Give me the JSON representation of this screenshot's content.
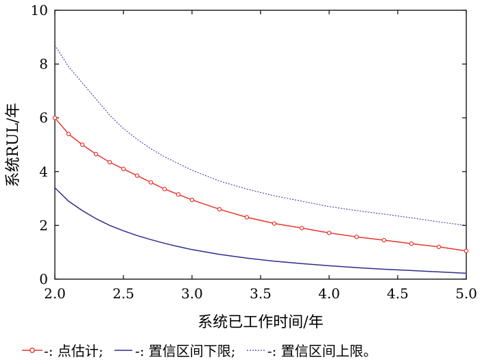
{
  "chart_data": {
    "type": "line",
    "xlabel": "系统已工作时间/年",
    "ylabel": "系统RUL/年",
    "xlim": [
      2.0,
      5.0
    ],
    "ylim": [
      0,
      10
    ],
    "xticks": [
      "2.0",
      "2.5",
      "3.0",
      "3.5",
      "4.0",
      "4.5",
      "5.0"
    ],
    "yticks": [
      "0",
      "2",
      "4",
      "6",
      "8",
      "10"
    ],
    "grid": false,
    "legend_position": "bottom",
    "series": [
      {
        "name": "点估计",
        "color": "#e8322a",
        "style": "line-circle",
        "x": [
          2.0,
          2.1,
          2.2,
          2.3,
          2.4,
          2.5,
          2.6,
          2.7,
          2.8,
          2.9,
          3.0,
          3.2,
          3.4,
          3.6,
          3.8,
          4.0,
          4.2,
          4.4,
          4.6,
          4.8,
          5.0
        ],
        "y": [
          6.0,
          5.4,
          5.0,
          4.65,
          4.35,
          4.1,
          3.85,
          3.6,
          3.35,
          3.15,
          2.95,
          2.6,
          2.3,
          2.07,
          1.9,
          1.72,
          1.57,
          1.45,
          1.32,
          1.2,
          1.05
        ]
      },
      {
        "name": "置信区间下限",
        "color": "#2b2b8c",
        "style": "solid",
        "x": [
          2.0,
          2.1,
          2.2,
          2.3,
          2.4,
          2.5,
          2.6,
          2.7,
          2.8,
          2.9,
          3.0,
          3.2,
          3.4,
          3.6,
          3.8,
          4.0,
          4.2,
          4.4,
          4.6,
          4.8,
          5.0
        ],
        "y": [
          3.4,
          2.9,
          2.55,
          2.25,
          2.0,
          1.8,
          1.62,
          1.47,
          1.33,
          1.21,
          1.1,
          0.92,
          0.78,
          0.67,
          0.58,
          0.5,
          0.43,
          0.37,
          0.32,
          0.27,
          0.22
        ]
      },
      {
        "name": "置信区间上限",
        "color": "#3a3aa0",
        "style": "dotted",
        "x": [
          2.0,
          2.1,
          2.2,
          2.3,
          2.4,
          2.5,
          2.6,
          2.7,
          2.8,
          2.9,
          3.0,
          3.2,
          3.4,
          3.6,
          3.8,
          4.0,
          4.2,
          4.4,
          4.6,
          4.8,
          5.0
        ],
        "y": [
          8.7,
          7.9,
          7.3,
          6.7,
          6.1,
          5.6,
          5.2,
          4.85,
          4.55,
          4.3,
          4.05,
          3.65,
          3.35,
          3.1,
          2.9,
          2.7,
          2.55,
          2.42,
          2.28,
          2.13,
          2.0
        ]
      }
    ]
  },
  "legend": {
    "item1_label": "-: 点估计;",
    "item2_label": "-: 置信区间下限;",
    "item3_label": "-: 置信区间上限。"
  }
}
